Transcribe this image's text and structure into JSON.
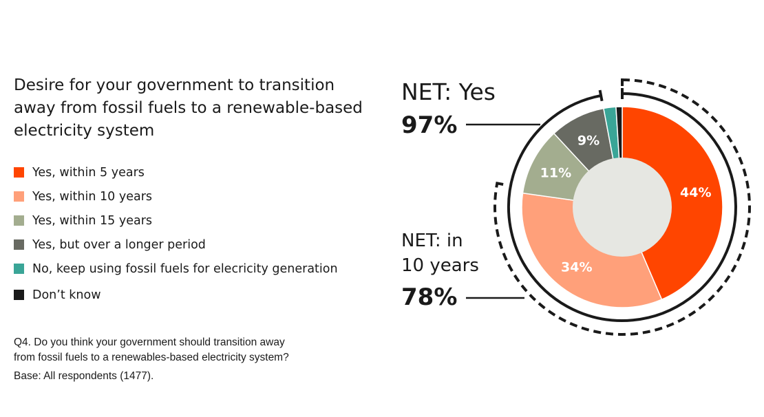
{
  "chart_data": {
    "type": "pie",
    "title": "Desire for your government to transition away from fossil fuels to a renewable-based electricity system",
    "categories": [
      "Yes, within 5 years",
      "Yes, within 10 years",
      "Yes, within 15 years",
      "Yes, but over a longer period",
      "No, keep using fossil fuels for elecricity generation",
      "Don’t know"
    ],
    "values": [
      44,
      34,
      11,
      9,
      2,
      1
    ],
    "data_labels": [
      "44%",
      "34%",
      "11%",
      "9%",
      "",
      ""
    ],
    "colors": [
      "#ff4500",
      "#ffa07a",
      "#a3ad8f",
      "#686a62",
      "#3aa597",
      "#1a1a1a"
    ],
    "label_colors": [
      "#ffffff",
      "#ffffff",
      "#ffffff",
      "#ffffff",
      "#ffffff",
      "#ffffff"
    ],
    "legend_position": "left",
    "nets": [
      {
        "label_lines": [
          "NET: Yes"
        ],
        "value": "97%",
        "percent": 97
      },
      {
        "label_lines": [
          "NET: in",
          "10 years"
        ],
        "value": "78%",
        "percent": 78
      }
    ]
  },
  "notes": {
    "question_line1": "Q4. Do you think your government should transition away",
    "question_line2": "from fossil fuels to a renewables-based electricity system?",
    "base": "Base: All respondents (1477)."
  }
}
